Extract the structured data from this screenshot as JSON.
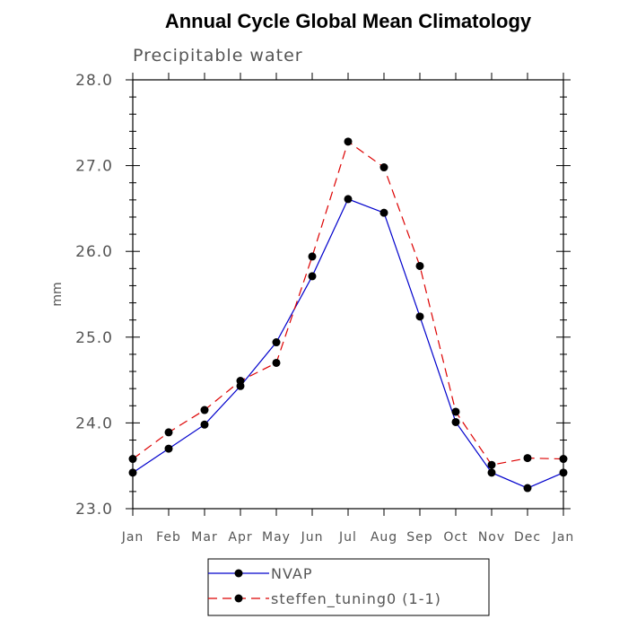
{
  "chart_data": {
    "type": "line",
    "title": "Annual Cycle Global Mean Climatology",
    "subtitle": "Precipitable water",
    "xlabel": "",
    "ylabel": "mm",
    "categories": [
      "Jan",
      "Feb",
      "Mar",
      "Apr",
      "May",
      "Jun",
      "Jul",
      "Aug",
      "Sep",
      "Oct",
      "Nov",
      "Dec",
      "Jan"
    ],
    "ylim": [
      23.0,
      28.0
    ],
    "yticks": [
      "23.0",
      "24.0",
      "25.0",
      "26.0",
      "27.0",
      "28.0"
    ],
    "grid": false,
    "legend_position": "bottom",
    "series": [
      {
        "name": "NVAP",
        "color": "#0000cc",
        "line_style": "solid",
        "marker": "filled-circle",
        "values": [
          23.42,
          23.7,
          23.98,
          24.43,
          24.94,
          25.71,
          26.61,
          26.45,
          25.24,
          24.01,
          23.42,
          23.24,
          23.42
        ]
      },
      {
        "name": "steffen_tuning0 (1-1)",
        "color": "#dd0000",
        "line_style": "dashed",
        "marker": "filled-circle",
        "values": [
          23.58,
          23.89,
          24.15,
          24.49,
          24.7,
          25.94,
          27.28,
          26.98,
          25.83,
          24.13,
          23.51,
          23.59,
          23.58
        ]
      }
    ]
  }
}
